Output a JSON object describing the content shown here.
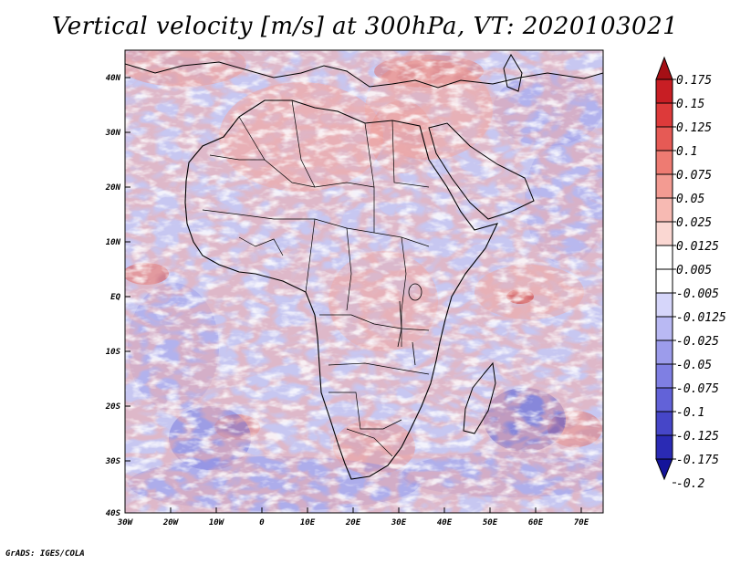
{
  "title": "Vertical velocity [m/s] at 300hPa, VT: 2020103021",
  "footer": "GrADS: IGES/COLA",
  "map": {
    "lat_ticks": [
      "40N",
      "30N",
      "20N",
      "10N",
      "EQ",
      "10S",
      "20S",
      "30S",
      "40S"
    ],
    "lon_ticks": [
      "30W",
      "20W",
      "10W",
      "0",
      "10E",
      "20E",
      "30E",
      "40E",
      "50E",
      "60E",
      "70E"
    ],
    "lon_range": [
      -30,
      75
    ],
    "lat_range": [
      -40,
      45
    ],
    "region": "Africa"
  },
  "colorbar": {
    "levels": [
      "0.175",
      "0.15",
      "0.125",
      "0.1",
      "0.075",
      "0.05",
      "0.025",
      "0.0125",
      "0.005",
      "-0.005",
      "-0.0125",
      "-0.025",
      "-0.05",
      "-0.075",
      "-0.1",
      "-0.125",
      "-0.175",
      "-0.2"
    ],
    "colors": [
      "#a50f15",
      "#c81e24",
      "#dd3a3a",
      "#e65a55",
      "#ee7b72",
      "#f39b92",
      "#f7bab3",
      "#fad7d2",
      "#ffffff",
      "#ffffff",
      "#d6d6fa",
      "#b9b9f3",
      "#9c9ceb",
      "#7f7fe3",
      "#6262d8",
      "#4646c8",
      "#2a2ab4",
      "#14149a"
    ]
  },
  "colors": {
    "positive": "#e8736b",
    "negative": "#6f6fe0",
    "background_field": "#c9c9f2",
    "coast": "#000000"
  }
}
